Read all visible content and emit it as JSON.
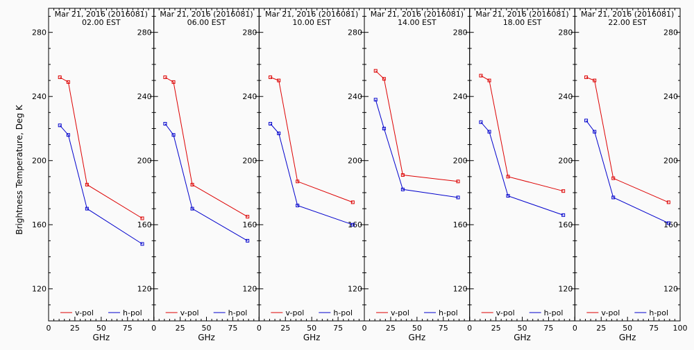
{
  "figure": {
    "ylabel": "Brightness Temperature, Deg K",
    "xlabel": "GHz",
    "xlim": [
      0,
      100
    ],
    "ylim": [
      100,
      295
    ],
    "x_ticks": [
      0,
      25,
      50,
      75,
      100
    ],
    "y_ticks": [
      120,
      160,
      200,
      240,
      280
    ],
    "x_tick_labels": [
      "0",
      "25",
      "50",
      "75",
      "100"
    ],
    "y_tick_labels": [
      "120",
      "160",
      "200",
      "240",
      "280"
    ],
    "colors": {
      "v_pol": "#dd0000",
      "h_pol": "#0000cc"
    },
    "legend": {
      "v_label": "v-pol",
      "h_label": "h-pol",
      "placement": "bottom"
    }
  },
  "chart_data": [
    {
      "type": "line",
      "title_line1": "Mar 21, 2016 (2016081)",
      "title_line2": "02.00 EST",
      "x": [
        10.7,
        18.7,
        36.5,
        89.0
      ],
      "series": [
        {
          "name": "v-pol",
          "values": [
            252,
            249,
            185,
            164
          ]
        },
        {
          "name": "h-pol",
          "values": [
            222,
            216,
            170,
            148
          ]
        }
      ]
    },
    {
      "type": "line",
      "title_line1": "Mar 21, 2016 (2016081)",
      "title_line2": "06.00 EST",
      "x": [
        10.7,
        18.7,
        36.5,
        89.0
      ],
      "series": [
        {
          "name": "v-pol",
          "values": [
            252,
            249,
            185,
            165
          ]
        },
        {
          "name": "h-pol",
          "values": [
            223,
            216,
            170,
            150
          ]
        }
      ]
    },
    {
      "type": "line",
      "title_line1": "Mar 21, 2016 (2016081)",
      "title_line2": "10.00 EST",
      "x": [
        10.7,
        18.7,
        36.5,
        89.0
      ],
      "series": [
        {
          "name": "v-pol",
          "values": [
            252,
            250,
            187,
            174
          ]
        },
        {
          "name": "h-pol",
          "values": [
            223,
            217,
            172,
            160
          ]
        }
      ]
    },
    {
      "type": "line",
      "title_line1": "Mar 21, 2016 (2016081)",
      "title_line2": "14.00 EST",
      "x": [
        10.7,
        18.7,
        36.5,
        89.0
      ],
      "series": [
        {
          "name": "v-pol",
          "values": [
            256,
            251,
            191,
            187
          ]
        },
        {
          "name": "h-pol",
          "values": [
            238,
            220,
            182,
            177
          ]
        }
      ]
    },
    {
      "type": "line",
      "title_line1": "Mar 21, 2016 (2016081)",
      "title_line2": "18.00 EST",
      "x": [
        10.7,
        18.7,
        36.5,
        89.0
      ],
      "series": [
        {
          "name": "v-pol",
          "values": [
            253,
            250,
            190,
            181
          ]
        },
        {
          "name": "h-pol",
          "values": [
            224,
            218,
            178,
            166
          ]
        }
      ]
    },
    {
      "type": "line",
      "title_line1": "Mar 21, 2016 (2016081)",
      "title_line2": "22.00 EST",
      "x": [
        10.7,
        18.7,
        36.5,
        89.0
      ],
      "series": [
        {
          "name": "v-pol",
          "values": [
            252,
            250,
            189,
            174
          ]
        },
        {
          "name": "h-pol",
          "values": [
            225,
            218,
            177,
            161
          ]
        }
      ]
    }
  ]
}
